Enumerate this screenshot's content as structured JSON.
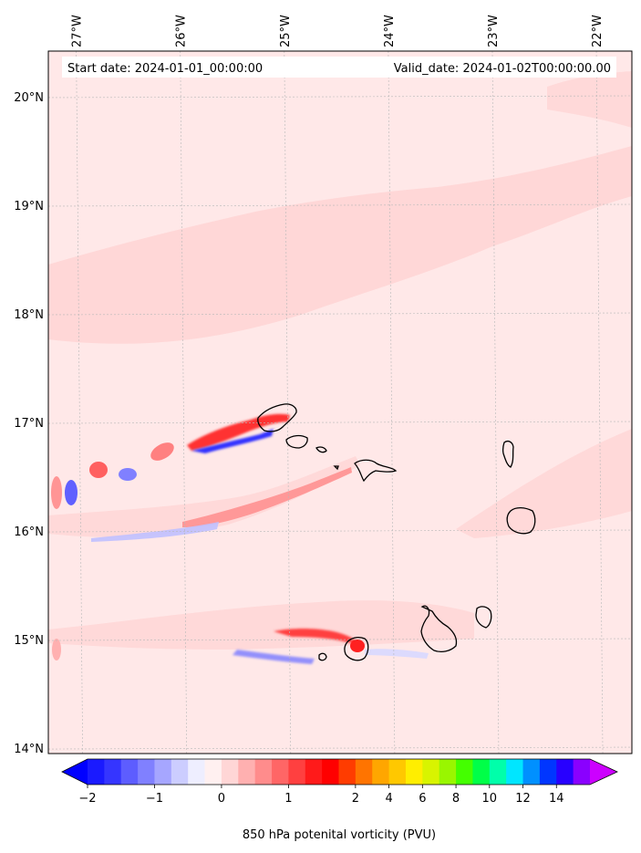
{
  "chart_data": {
    "type": "map-contour",
    "title": "",
    "header": {
      "start_date": "Start date: 2024-01-01_00:00:00",
      "valid_date": "Valid_date: 2024-01-02T00:00:00.00"
    },
    "xlabels": [
      "27°W",
      "26°W",
      "25°W",
      "24°W",
      "23°W",
      "22°W"
    ],
    "ylabels": [
      "20°N",
      "19°N",
      "18°N",
      "17°N",
      "16°N",
      "15°N",
      "14°N"
    ],
    "lon_range": [
      -27.33,
      -21.72
    ],
    "lat_range": [
      13.95,
      20.42
    ],
    "grid": true,
    "colorbar": {
      "label": "850 hPa potenital vorticity (PVU)",
      "extend": "both",
      "tick_labels": [
        "−2",
        "−1",
        "0",
        "1",
        "2",
        "4",
        "6",
        "8",
        "10",
        "12",
        "14"
      ],
      "tick_level_index": [
        0,
        4,
        8,
        12,
        16,
        18,
        20,
        22,
        24,
        26,
        28
      ],
      "under_color": "#0000ff",
      "over_color": "#cc00ff",
      "colors": [
        "#1a1aff",
        "#3535ff",
        "#5d5dff",
        "#8080ff",
        "#a6a6ff",
        "#cccdff",
        "#eeeeff",
        "#fff0f0",
        "#ffd6d6",
        "#ffb0b0",
        "#ff8c8c",
        "#ff6666",
        "#ff4040",
        "#ff1a1a",
        "#ff0000",
        "#ff3c00",
        "#ff7400",
        "#ffa600",
        "#ffc800",
        "#ffee00",
        "#d8f400",
        "#99f600",
        "#44ff00",
        "#00ff48",
        "#00ffaa",
        "#00e6ff",
        "#0090ff",
        "#0036ff",
        "#2800ff",
        "#8a00ff"
      ]
    },
    "background_field_color": "#ffe8e8"
  }
}
